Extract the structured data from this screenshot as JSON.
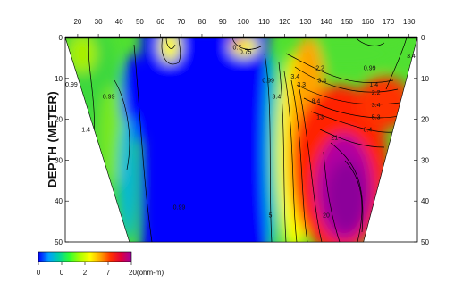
{
  "chart_data": {
    "type": "heatmap",
    "title": "",
    "xlabel": "",
    "ylabel": "DEPTH (METER)",
    "x_ticks": [
      20,
      30,
      40,
      50,
      60,
      70,
      80,
      90,
      100,
      110,
      120,
      130,
      140,
      150,
      160,
      170,
      180
    ],
    "y_ticks": [
      0,
      10,
      20,
      30,
      40,
      50
    ],
    "xlim": [
      14,
      184
    ],
    "ylim": [
      0,
      50
    ],
    "y_inverted": true,
    "section_outline": [
      [
        14,
        0
      ],
      [
        184,
        0
      ],
      [
        158,
        50
      ],
      [
        45,
        50
      ]
    ],
    "contour_labels": [
      {
        "text": "0.99",
        "x": 17,
        "y": 12
      },
      {
        "text": "1.4",
        "x": 24,
        "y": 23
      },
      {
        "text": "0.99",
        "x": 35,
        "y": 15
      },
      {
        "text": "0.99",
        "x": 69,
        "y": 42
      },
      {
        "text": "0.7",
        "x": 97,
        "y": 3
      },
      {
        "text": "0.75",
        "x": 101,
        "y": 4
      },
      {
        "text": "0.99",
        "x": 112,
        "y": 11
      },
      {
        "text": "3.4",
        "x": 116,
        "y": 15
      },
      {
        "text": "3.4",
        "x": 125,
        "y": 10
      },
      {
        "text": "3.3",
        "x": 128,
        "y": 12
      },
      {
        "text": "2.2",
        "x": 137,
        "y": 8
      },
      {
        "text": "3.4",
        "x": 138,
        "y": 11
      },
      {
        "text": "0.99",
        "x": 161,
        "y": 8
      },
      {
        "text": "1.4",
        "x": 163,
        "y": 12
      },
      {
        "text": "2.2",
        "x": 164,
        "y": 14
      },
      {
        "text": "3.4",
        "x": 164,
        "y": 17
      },
      {
        "text": "5.3",
        "x": 164,
        "y": 20
      },
      {
        "text": "8.4",
        "x": 160,
        "y": 23
      },
      {
        "text": "8.4",
        "x": 135,
        "y": 16
      },
      {
        "text": "13",
        "x": 137,
        "y": 20
      },
      {
        "text": "21",
        "x": 144,
        "y": 25
      },
      {
        "text": "3.4",
        "x": 181,
        "y": 5
      },
      {
        "text": "20",
        "x": 140,
        "y": 44
      },
      {
        "text": "5",
        "x": 113,
        "y": 44
      }
    ],
    "colorbar": {
      "unit_label": "20(ohm-m)",
      "tick_labels": [
        "0",
        "0",
        "2",
        "7",
        ""
      ],
      "colors": [
        "#0000ff",
        "#00a0ff",
        "#00d2a0",
        "#30ff30",
        "#aaff00",
        "#ffff00",
        "#ffa500",
        "#ff3000",
        "#e0003c",
        "#a000a0"
      ]
    }
  }
}
